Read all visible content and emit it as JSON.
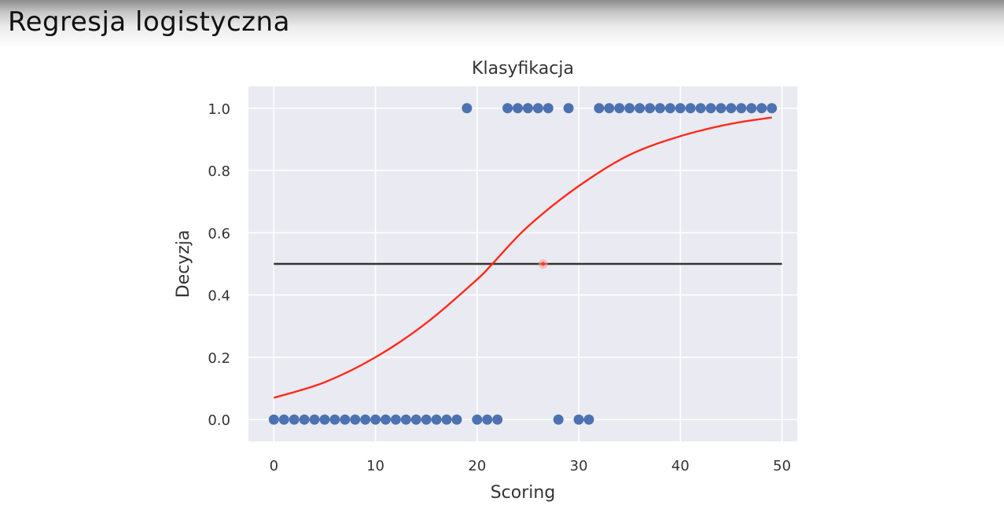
{
  "slide": {
    "title": "Regresja logistyczna"
  },
  "chart_data": {
    "type": "scatter",
    "title": "Klasyfikacja",
    "xlabel": "Scoring",
    "ylabel": "Decyzja",
    "xlim": [
      -2.5,
      51.5
    ],
    "ylim": [
      -0.07,
      1.07
    ],
    "xticks": [
      "0",
      "10",
      "20",
      "30",
      "40",
      "50"
    ],
    "yticks": [
      "0.0",
      "0.2",
      "0.4",
      "0.6",
      "0.8",
      "1.0"
    ],
    "grid": true,
    "colors": {
      "background": "#eaeaf2",
      "points": "#4c72b0",
      "logistic_curve": "#ff2a1a",
      "threshold": "#333333"
    },
    "series": [
      {
        "kind": "points",
        "x": [
          0,
          1,
          2,
          3,
          4,
          5,
          6,
          7,
          8,
          9,
          10,
          11,
          12,
          13,
          14,
          15,
          16,
          17,
          18,
          19,
          20,
          21,
          22,
          23,
          24,
          25,
          26,
          27,
          28,
          29,
          30,
          31,
          32,
          33,
          34,
          35,
          36,
          37,
          38,
          39,
          40,
          41,
          42,
          43,
          44,
          45,
          46,
          47,
          48,
          49
        ],
        "y": [
          0,
          0,
          0,
          0,
          0,
          0,
          0,
          0,
          0,
          0,
          0,
          0,
          0,
          0,
          0,
          0,
          0,
          0,
          0,
          1,
          0,
          0,
          0,
          1,
          1,
          1,
          1,
          1,
          0,
          1,
          0,
          0,
          1,
          1,
          1,
          1,
          1,
          1,
          1,
          1,
          1,
          1,
          1,
          1,
          1,
          1,
          1,
          1,
          1,
          1
        ]
      },
      {
        "kind": "logistic_curve",
        "x": [
          0,
          5,
          10,
          15,
          20,
          21.5,
          25,
          30,
          35,
          40,
          45,
          49
        ],
        "y": [
          0.07,
          0.12,
          0.2,
          0.31,
          0.45,
          0.5,
          0.62,
          0.75,
          0.85,
          0.91,
          0.95,
          0.97
        ]
      },
      {
        "kind": "threshold_line",
        "x": [
          0,
          50
        ],
        "y": [
          0.5,
          0.5
        ]
      }
    ],
    "cursor_point": {
      "x": 26.5,
      "y": 0.5
    }
  }
}
